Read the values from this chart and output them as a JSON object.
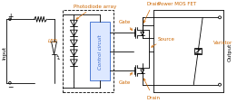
{
  "bg_color": "#ffffff",
  "line_color": "#000000",
  "orange": "#cc6600",
  "blue": "#3366cc",
  "figsize": [
    2.61,
    1.15
  ],
  "dpi": 100,
  "labels": {
    "input": "Input",
    "output": "Output",
    "led": "LED",
    "photodiode_array": "Photodiode array",
    "control_circuit": "Control circuit",
    "power_mos_fet": "Power MOS FET",
    "drain_top": "Drain",
    "drain_bot": "Drain",
    "source": "Source",
    "gate_top": "Gate",
    "gate_bot": "Gate",
    "varistor": "Varistor"
  }
}
